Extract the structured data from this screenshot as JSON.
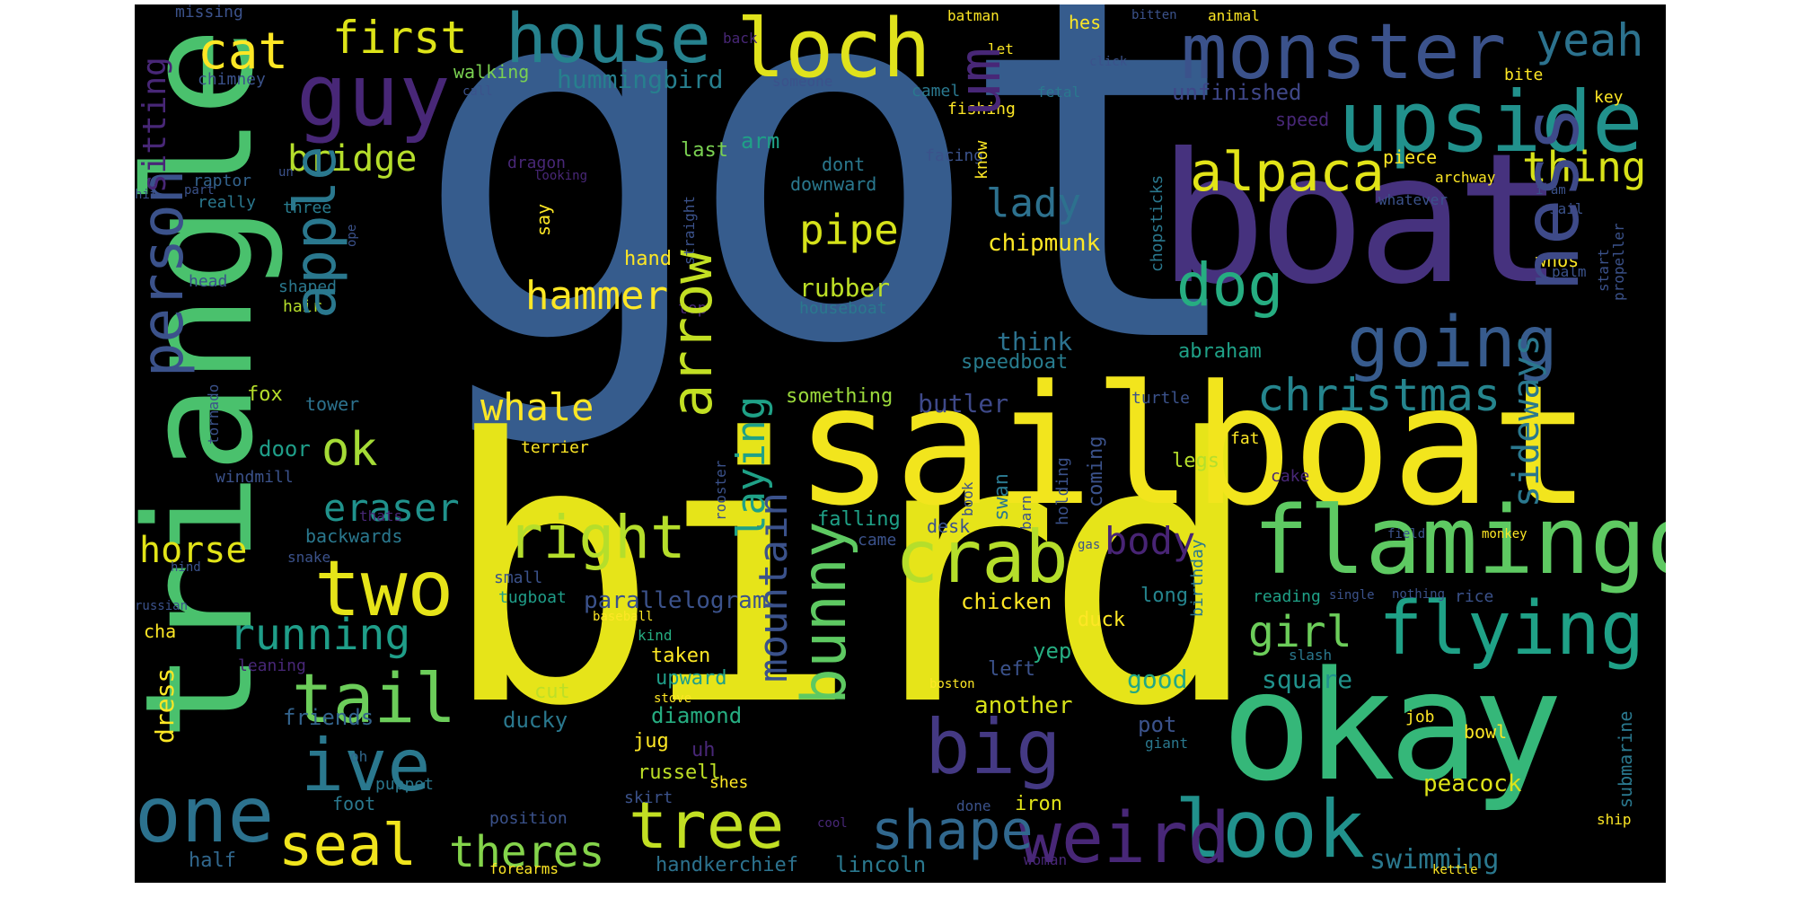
{
  "word_cloud": {
    "background": "#000000",
    "palette": [
      "#440154",
      "#46327e",
      "#365c8d",
      "#277f8e",
      "#1fa187",
      "#4ac16d",
      "#a0da39",
      "#fde725"
    ],
    "words": {
      "got": "got",
      "bird": "bird",
      "sailboat": "sailboat",
      "boat": "boat",
      "triangle": "triangle",
      "okay": "okay",
      "flamingo": "flamingo",
      "monster": "monster",
      "upside": "upside",
      "house": "house",
      "loch": "loch",
      "guy": "guy",
      "cat": "cat",
      "first": "first",
      "um": "um",
      "ness": "ness",
      "going": "going",
      "dog": "dog",
      "alpaca": "alpaca",
      "yeah": "yeah",
      "thing": "thing",
      "christmas": "christmas",
      "flying": "flying",
      "look": "look",
      "weird": "weird",
      "shape": "shape",
      "big": "big",
      "crab": "crab",
      "right": "right",
      "arrow": "arrow",
      "bunny": "bunny",
      "tree": "tree",
      "two": "two",
      "tail": "tail",
      "ive": "ive",
      "one": "one",
      "seal": "seal",
      "theres": "theres",
      "person": "person",
      "apple": "apple",
      "ok": "ok",
      "eraser": "eraser",
      "running": "running",
      "horse": "horse",
      "bridge": "bridge",
      "sitting": "sitting",
      "whale": "whale",
      "hammer": "hammer",
      "pipe": "pipe",
      "lady": "lady",
      "girl": "girl",
      "body": "body",
      "mountain": "mountain",
      "laying": "laying",
      "sideways": "sideways",
      "hummingbird": "hummingbird",
      "missing": "missing",
      "chimney": "chimney",
      "raptor": "raptor",
      "really": "really",
      "three": "three",
      "part": "part",
      "hit": "hit",
      "un": "un",
      "dragon": "dragon",
      "say": "say",
      "looking": "looking",
      "straight": "straight",
      "arm": "arm",
      "last": "last",
      "walking": "walking",
      "back": "back",
      "call": "call",
      "someone": "someone",
      "batman": "batman",
      "camel": "camel",
      "fishing": "fishing",
      "let": "let",
      "fetal": "fetal",
      "hes": "hes",
      "click": "click",
      "bitten": "bitten",
      "animal": "animal",
      "key": "key",
      "bite": "bite",
      "unfinished": "unfinished",
      "speed": "speed",
      "piece": "piece",
      "archway": "archway",
      "whatever": "whatever",
      "sail": "sail",
      "i_am": "i am",
      "palm": "palm",
      "whos": "whos",
      "start": "start",
      "propeller": "propeller",
      "abraham": "abraham",
      "chopsticks": "chopsticks",
      "know": "know",
      "facing": "facing",
      "dont": "dont",
      "downward": "downward",
      "chipmunk": "chipmunk",
      "rubber": "rubber",
      "houseboat": "houseboat",
      "hand": "hand",
      "top": "top",
      "think": "think",
      "speedboat": "speedboat",
      "shaped": "shaped",
      "hair": "hair",
      "head": "head",
      "tower": "tower",
      "fox": "fox",
      "something": "something",
      "butler": "butler",
      "tornado": "tornado",
      "door": "door",
      "windmill": "windmill",
      "terrier": "terrier",
      "rooster": "rooster",
      "holding": "holding",
      "coming": "coming",
      "turtle": "turtle",
      "legs": "legs",
      "fat": "fat",
      "cake": "cake",
      "swan": "swan",
      "book": "book",
      "barn": "barn",
      "falling": "falling",
      "desk": "desk",
      "came": "came",
      "backwards": "backwards",
      "snake": "snake",
      "thats": "thats",
      "hind": "hind",
      "small": "small",
      "birthday": "birthday",
      "gas": "gas",
      "field": "field",
      "monkey": "monkey",
      "russian": "russian",
      "baseball": "baseball",
      "tugboat": "tugboat",
      "parallelogram": "parallelogram",
      "chicken": "chicken",
      "long": "long",
      "reading": "reading",
      "single": "single",
      "nothing": "nothing",
      "rice": "rice",
      "cha": "cha",
      "leaning": "leaning",
      "duck": "duck",
      "kind": "kind",
      "slash": "slash",
      "dress": "dress",
      "taken": "taken",
      "upward": "upward",
      "yep": "yep",
      "left": "left",
      "square": "square",
      "good": "good",
      "boston": "boston",
      "job": "job",
      "bowl": "bowl",
      "peacock": "peacock",
      "cut": "cut",
      "stove": "stove",
      "another": "another",
      "friends": "friends",
      "ducky": "ducky",
      "diamond": "diamond",
      "jug": "jug",
      "pot": "pot",
      "submarine": "submarine",
      "oh": "oh",
      "puppet": "puppet",
      "uh": "uh",
      "russell": "russell",
      "giant": "giant",
      "shes": "shes",
      "skirt": "skirt",
      "foot": "foot",
      "position": "position",
      "done": "done",
      "iron": "iron",
      "cool": "cool",
      "ship": "ship",
      "half": "half",
      "handkerchief": "handkerchief",
      "lincoln": "lincoln",
      "woman": "woman",
      "swimming": "swimming",
      "forearms": "forearms",
      "kettle": "kettle",
      "ope": "ope"
    }
  }
}
